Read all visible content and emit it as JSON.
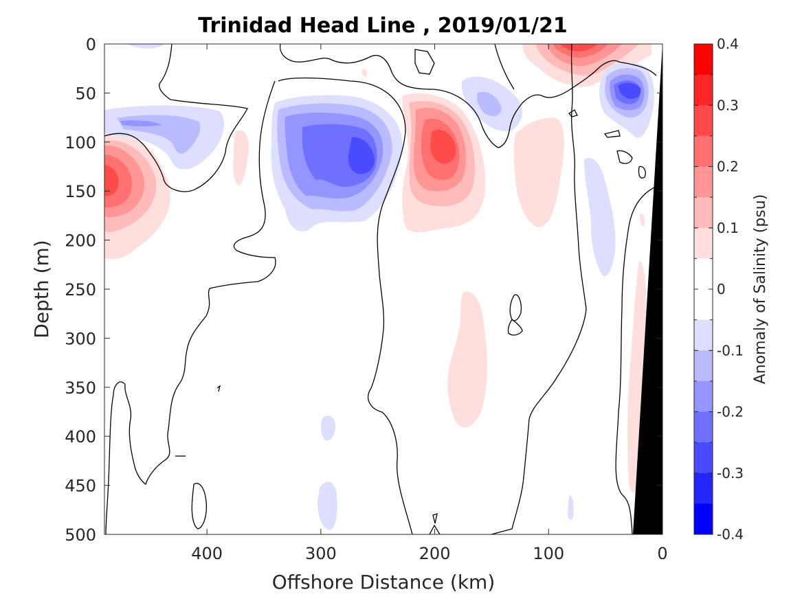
{
  "chart_data": {
    "type": "heatmap",
    "title": "Trinidad Head Line , 2019/01/21",
    "xlabel": "Offshore Distance (km)",
    "ylabel": "Depth (m)",
    "xlim": [
      490,
      0
    ],
    "ylim": [
      500,
      0
    ],
    "x_ticks": [
      400,
      300,
      200,
      100,
      0
    ],
    "y_ticks": [
      0,
      50,
      100,
      150,
      200,
      250,
      300,
      350,
      400,
      450,
      500
    ],
    "colorbar": {
      "label": "Anomaly of Salinity (psu)",
      "range": [
        -0.4,
        0.4
      ],
      "ticks": [
        0.4,
        0.3,
        0.2,
        0.1,
        0,
        -0.1,
        -0.2,
        -0.3,
        -0.4
      ],
      "levels": [
        "#ff0000",
        "#ff2525",
        "#ff4a4a",
        "#ff7070",
        "#ff9595",
        "#ffbaba",
        "#ffdede",
        "#ffffff",
        "#ffffff",
        "#dedeff",
        "#babaff",
        "#9595ff",
        "#7070ff",
        "#4a4aff",
        "#2525ff",
        "#0000ff"
      ]
    },
    "features": [
      {
        "sign": "positive",
        "center_km": 470,
        "center_depth_m": 140,
        "peak": 0.25
      },
      {
        "sign": "negative",
        "center_km": 285,
        "center_depth_m": 110,
        "peak": -0.25
      },
      {
        "sign": "positive",
        "center_km": 190,
        "center_depth_m": 105,
        "peak": 0.25
      },
      {
        "sign": "positive",
        "center_km": 75,
        "center_depth_m": 5,
        "peak": 0.25
      },
      {
        "sign": "negative",
        "center_km": 25,
        "center_depth_m": 45,
        "peak": -0.3
      },
      {
        "sign": "negative",
        "center_km": 440,
        "center_depth_m": 85,
        "peak": -0.15
      },
      {
        "sign": "negative",
        "center_km": 150,
        "center_depth_m": 70,
        "peak": -0.15
      },
      {
        "sign": "positive",
        "center_km": 180,
        "center_depth_m": 330,
        "peak": 0.1
      },
      {
        "sign": "positive",
        "center_km": 105,
        "center_depth_m": 140,
        "peak": 0.1
      },
      {
        "sign": "negative",
        "center_km": 55,
        "center_depth_m": 170,
        "peak": -0.1
      },
      {
        "sign": "negative",
        "center_km": 295,
        "center_depth_m": 460,
        "peak": -0.1
      },
      {
        "sign": "negative",
        "center_km": 290,
        "center_depth_m": 390,
        "peak": -0.1
      }
    ],
    "zero_contour": "black line",
    "bathymetry_fill": "#000000"
  }
}
